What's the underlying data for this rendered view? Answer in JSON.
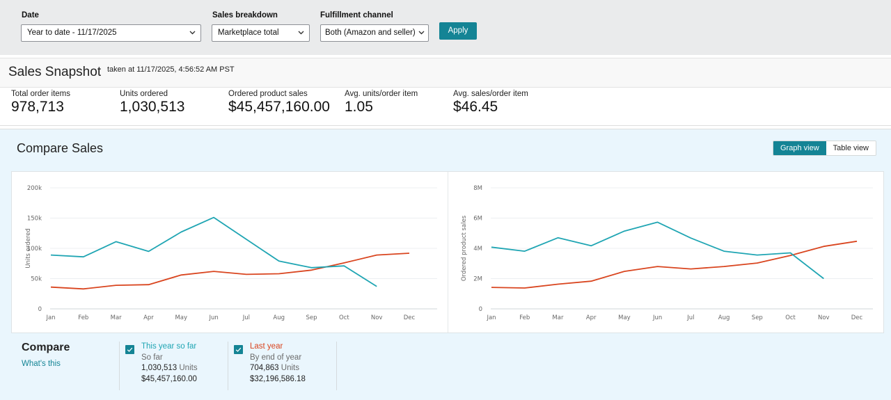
{
  "filters": {
    "date": {
      "label": "Date",
      "value": "Year to date - 11/17/2025"
    },
    "sales_breakdown": {
      "label": "Sales breakdown",
      "value": "Marketplace total"
    },
    "fulfillment_channel": {
      "label": "Fulfillment channel",
      "value": "Both (Amazon and seller)"
    },
    "apply_label": "Apply"
  },
  "snapshot": {
    "title": "Sales Snapshot",
    "taken_at": "taken at 11/17/2025, 4:56:52 AM PST",
    "stats": [
      {
        "label": "Total order items",
        "value": "978,713"
      },
      {
        "label": "Units ordered",
        "value": "1,030,513"
      },
      {
        "label": "Ordered product sales",
        "value": "$45,457,160.00"
      },
      {
        "label": "Avg. units/order item",
        "value": "1.05"
      },
      {
        "label": "Avg. sales/order item",
        "value": "$46.45"
      }
    ]
  },
  "compare_sales": {
    "title": "Compare Sales",
    "views": [
      {
        "label": "Graph view",
        "active": true
      },
      {
        "label": "Table view",
        "active": false
      }
    ]
  },
  "colors": {
    "this_year": "#1fa5b3",
    "last_year": "#d9451f",
    "accent": "#148495"
  },
  "chart_data": [
    {
      "type": "line",
      "title": "",
      "xlabel": "",
      "ylabel": "Units ordered",
      "categories": [
        "Jan",
        "Feb",
        "Mar",
        "Apr",
        "May",
        "Jun",
        "Jul",
        "Aug",
        "Sep",
        "Oct",
        "Nov",
        "Dec"
      ],
      "ylim": [
        0,
        200000
      ],
      "yticks": [
        0,
        50000,
        100000,
        150000,
        200000
      ],
      "ytick_labels": [
        "0",
        "50k",
        "100k",
        "150k",
        "200k"
      ],
      "grid": true,
      "legend": "none",
      "series": [
        {
          "name": "This year so far",
          "color": "#1fa5b3",
          "values": [
            89000,
            86000,
            111000,
            95000,
            127000,
            151000,
            115000,
            79000,
            68000,
            71000,
            37000,
            null
          ]
        },
        {
          "name": "Last year",
          "color": "#d9451f",
          "values": [
            36000,
            33000,
            39000,
            40000,
            56000,
            62000,
            57000,
            58000,
            64000,
            76000,
            89000,
            92000
          ]
        }
      ]
    },
    {
      "type": "line",
      "title": "",
      "xlabel": "",
      "ylabel": "Ordered product sales",
      "categories": [
        "Jan",
        "Feb",
        "Mar",
        "Apr",
        "May",
        "Jun",
        "Jul",
        "Aug",
        "Sep",
        "Oct",
        "Nov",
        "Dec"
      ],
      "ylim": [
        0,
        8000000
      ],
      "yticks": [
        0,
        2000000,
        4000000,
        6000000,
        8000000
      ],
      "ytick_labels": [
        "0",
        "2M",
        "4M",
        "6M",
        "8M"
      ],
      "grid": true,
      "legend": "none",
      "series": [
        {
          "name": "This year so far",
          "color": "#1fa5b3",
          "values": [
            4080000,
            3810000,
            4700000,
            4170000,
            5140000,
            5730000,
            4680000,
            3810000,
            3560000,
            3700000,
            2000000,
            null
          ]
        },
        {
          "name": "Last year",
          "color": "#d9451f",
          "values": [
            1420000,
            1380000,
            1630000,
            1830000,
            2480000,
            2800000,
            2640000,
            2800000,
            3030000,
            3530000,
            4130000,
            4470000
          ]
        }
      ]
    }
  ],
  "compare": {
    "heading": "Compare",
    "whats_this": "What's this",
    "items": [
      {
        "title": "This year so far",
        "subtitle": "So far",
        "units_value": "1,030,513",
        "units_label": "Units",
        "sales": "$45,457,160.00",
        "checked": true
      },
      {
        "title": "Last year",
        "subtitle": "By end of year",
        "units_value": "704,863",
        "units_label": "Units",
        "sales": "$32,196,586.18",
        "checked": true
      }
    ]
  }
}
